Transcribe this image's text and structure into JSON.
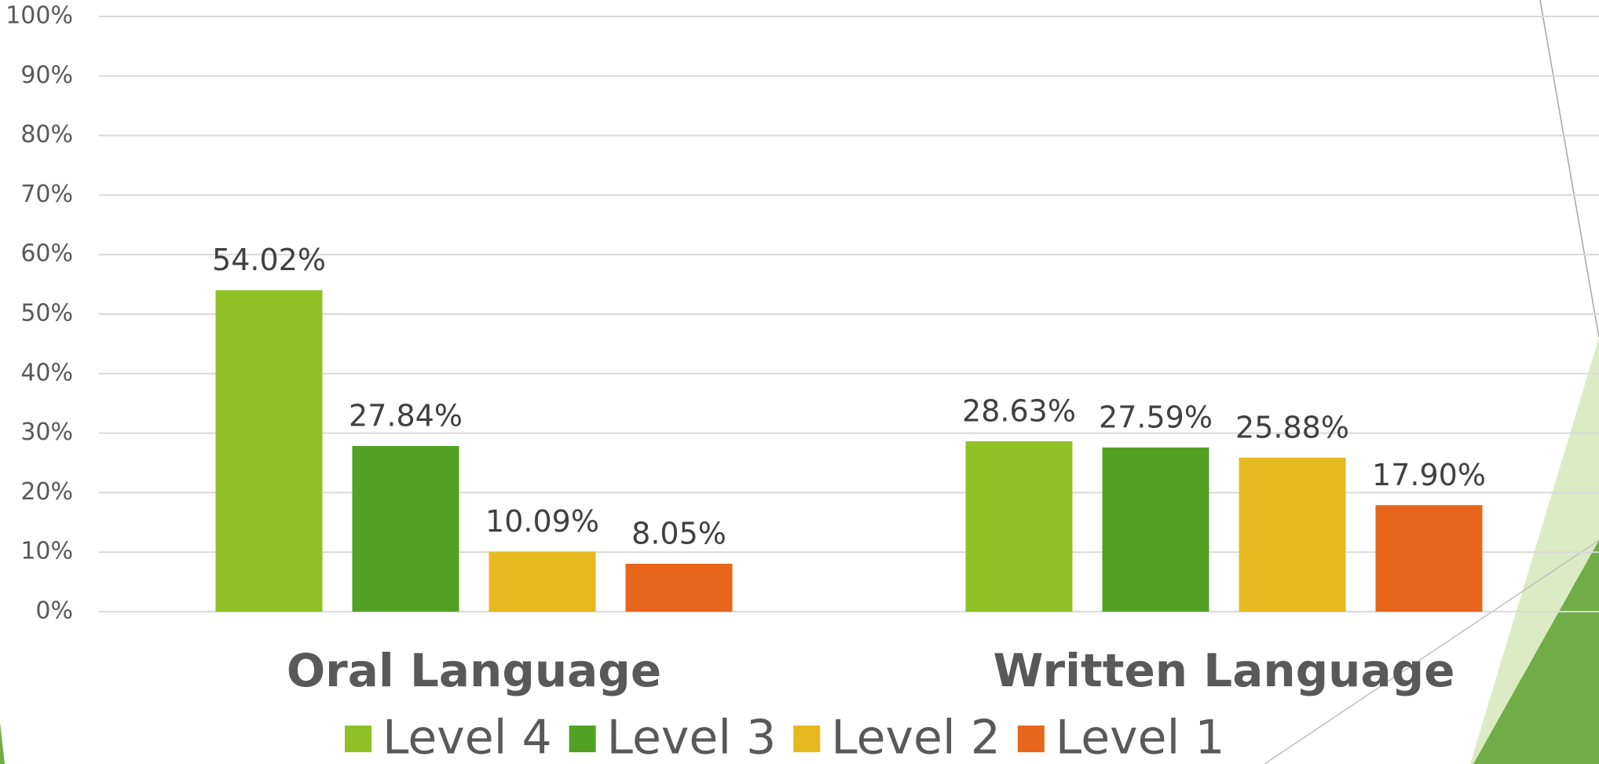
{
  "chart_data": {
    "type": "bar",
    "categories": [
      "Oral Language",
      "Written Language"
    ],
    "series": [
      {
        "name": "Level 4",
        "color": "#8fc127",
        "values": [
          54.02,
          28.63
        ],
        "value_labels": [
          "54.02%",
          "28.63%"
        ]
      },
      {
        "name": "Level 3",
        "color": "#53a124",
        "values": [
          27.84,
          27.59
        ],
        "value_labels": [
          "27.84%",
          "27.59%"
        ]
      },
      {
        "name": "Level 2",
        "color": "#e6b920",
        "values": [
          10.09,
          25.88
        ],
        "value_labels": [
          "10.09%",
          "25.88%"
        ]
      },
      {
        "name": "Level 1",
        "color": "#e7661b",
        "values": [
          8.05,
          17.9
        ],
        "value_labels": [
          "8.05%",
          "17.90%"
        ]
      }
    ],
    "ylim": [
      0,
      100
    ],
    "yticks": [
      {
        "value": 0,
        "label": "0%"
      },
      {
        "value": 10,
        "label": "10%"
      },
      {
        "value": 20,
        "label": "20%"
      },
      {
        "value": 30,
        "label": "30%"
      },
      {
        "value": 40,
        "label": "40%"
      },
      {
        "value": 50,
        "label": "50%"
      },
      {
        "value": 60,
        "label": "60%"
      },
      {
        "value": 70,
        "label": "70%"
      },
      {
        "value": 80,
        "label": "80%"
      },
      {
        "value": 90,
        "label": "90%"
      },
      {
        "value": 100,
        "label": "100%"
      }
    ],
    "grid": true,
    "legend": "bottom"
  }
}
